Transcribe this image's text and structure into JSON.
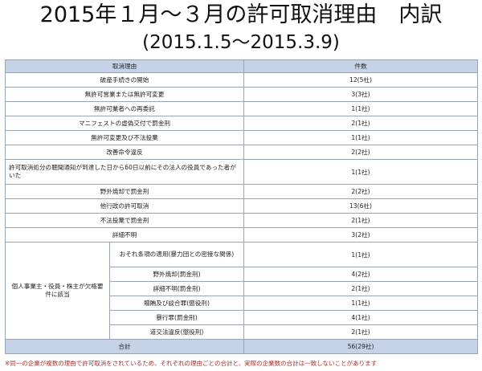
{
  "title": "2015年１月～３月の許可取消理由　内訳",
  "subtitle": "(2015.1.5～2015.3.9)",
  "table": {
    "headers": {
      "reason": "取消理由",
      "count": "件数"
    },
    "rows": [
      {
        "reason": "破産手続きの開始",
        "count": "12(5社)"
      },
      {
        "reason": "無許可営業または無許可変更",
        "count": "3(3社)"
      },
      {
        "reason": "無許可業者への再委託",
        "count": "1(1社)"
      },
      {
        "reason": "マニフェストの虚偽交付で罰金刑",
        "count": "2(1社)"
      },
      {
        "reason": "無許可変更及び不法投棄",
        "count": "1(1社)"
      },
      {
        "reason": "改善命令違反",
        "count": "2(2社)"
      },
      {
        "reason": "許可取消処分の聴聞通知が到達した日から60日以前にその法人の役員であった者がいた",
        "count": "1(1社)"
      },
      {
        "reason": "野外焼却で罰金刑",
        "count": "2(2社)"
      },
      {
        "reason": "他行政の許可取消",
        "count": "13(6社)"
      },
      {
        "reason": "不法投棄で罰金刑",
        "count": "2(1社)"
      },
      {
        "reason": "詳細不明",
        "count": "3(2社)"
      }
    ],
    "group": {
      "label": "個人事業主・役員・株主が欠格要件に該当",
      "rows": [
        {
          "reason": "おそれ条項の適用(暴力団との密接な関係)",
          "count": "1(1社)"
        },
        {
          "reason": "野外焼却(罰金刑)",
          "count": "4(2社)"
        },
        {
          "reason": "詳細不明(罰金刑)",
          "count": "2(1社)"
        },
        {
          "reason": "贈賄及び談合罪(懲役刑)",
          "count": "1(1社)"
        },
        {
          "reason": "暴行罪(罰金刑)",
          "count": "4(1社)"
        },
        {
          "reason": "道交法違反(懲役刑)",
          "count": "2(1社)"
        }
      ]
    },
    "total": {
      "label": "合計",
      "count": "56(29社)"
    }
  },
  "note": "※同一の企業が複数の理由で許可取消をされているため、それぞれの理由ごとの合計と、実際の企業数の合計は一致しないことがあります"
}
